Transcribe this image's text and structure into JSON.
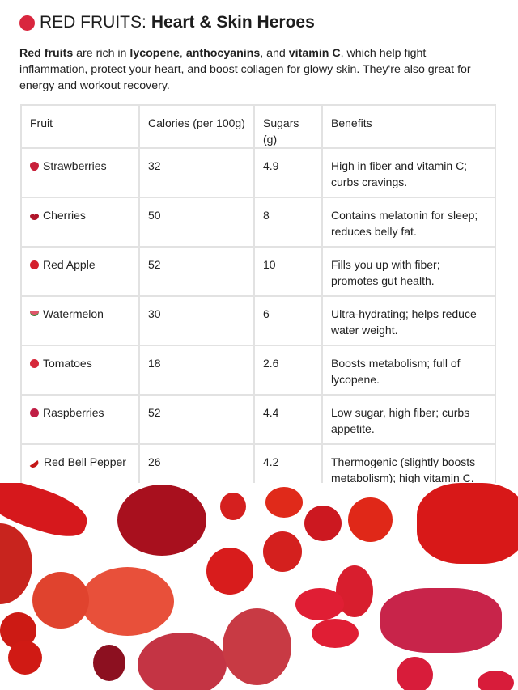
{
  "header": {
    "title_light": "RED FRUITS:",
    "title_bold": "Heart & Skin Heroes",
    "title_icon": "red-circle-icon"
  },
  "intro": {
    "b1": "Red fruits",
    "t1": " are rich in ",
    "b2": "lycopene",
    "t2": ", ",
    "b3": "anthocyanins",
    "t3": ", and ",
    "b4": "vitamin C",
    "t4": ", which help fight inflammation, protect your heart, and boost collagen for glowy skin. They're also great for energy and workout recovery."
  },
  "table": {
    "headers": [
      "Fruit",
      "Calories (per 100g)",
      "Sugars (g)",
      "Benefits"
    ],
    "rows": [
      {
        "icon": "strawberry",
        "fruit": "Strawberries",
        "calories": "32",
        "sugars": "4.9",
        "benefits": "High in fiber and vitamin C; curbs cravings."
      },
      {
        "icon": "cherries",
        "fruit": "Cherries",
        "calories": "50",
        "sugars": "8",
        "benefits": "Contains melatonin for sleep; reduces belly fat."
      },
      {
        "icon": "apple",
        "fruit": "Red Apple",
        "calories": "52",
        "sugars": "10",
        "benefits": "Fills you up with fiber; promotes gut health."
      },
      {
        "icon": "watermelon",
        "fruit": "Watermelon",
        "calories": "30",
        "sugars": "6",
        "benefits": "Ultra-hydrating; helps reduce water weight."
      },
      {
        "icon": "tomato",
        "fruit": "Tomatoes",
        "calories": "18",
        "sugars": "2.6",
        "benefits": "Boosts metabolism; full of lycopene."
      },
      {
        "icon": "raspberry",
        "fruit": "Raspberries",
        "calories": "52",
        "sugars": "4.4",
        "benefits": "Low sugar, high fiber; curbs appetite."
      },
      {
        "icon": "pepper",
        "fruit": "Red Bell Pepper",
        "calories": "26",
        "sugars": "4.2",
        "benefits": "Thermogenic (slightly boosts metabolism); high vitamin C."
      }
    ]
  },
  "colors": {
    "accent": "#d9263e",
    "border": "#e2e2e2"
  }
}
